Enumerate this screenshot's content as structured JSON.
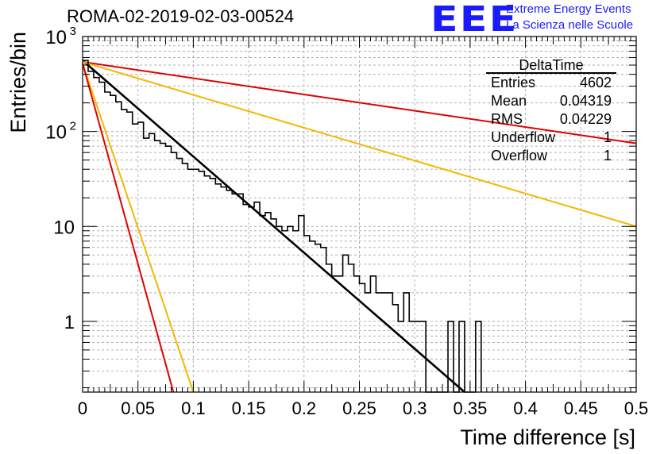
{
  "header": {
    "title": "ROMA-02-2019-02-03-00524",
    "logo_text": "EEE",
    "logo_line1": "Extreme Energy Events",
    "logo_line2": "La Scienza nelle Scuole"
  },
  "stats_box": {
    "title": "DeltaTime",
    "rows": [
      {
        "label": "Entries",
        "value": "4602"
      },
      {
        "label": "Mean",
        "value": "0.04319"
      },
      {
        "label": "RMS",
        "value": "0.04229"
      },
      {
        "label": "Underflow",
        "value": "1"
      },
      {
        "label": "Overflow",
        "value": "1"
      }
    ]
  },
  "colors": {
    "histogram": "#000000",
    "fit": "#000000",
    "red": "#e00000",
    "orange": "#f5b800",
    "grid": "#b0b0b0"
  },
  "chart_data": {
    "type": "line",
    "title": "ROMA-02-2019-02-03-00524",
    "xlabel": "Time difference [s]",
    "ylabel": "Entries/bin",
    "xlim": [
      0,
      0.5
    ],
    "ylim": [
      0.18,
      1000
    ],
    "yscale": "log",
    "grid": true,
    "legend": "top-right",
    "x_ticks": [
      "0",
      "0.05",
      "0.1",
      "0.15",
      "0.2",
      "0.25",
      "0.3",
      "0.35",
      "0.4",
      "0.45",
      "0.5"
    ],
    "y_ticks": [
      {
        "value": 1000,
        "label": "10",
        "exp": "3"
      },
      {
        "value": 100,
        "label": "10",
        "exp": "2"
      },
      {
        "value": 10,
        "label": "10",
        "exp": ""
      },
      {
        "value": 1,
        "label": "1",
        "exp": ""
      }
    ],
    "histogram": {
      "bin_width": 0.005,
      "x": [
        0.0,
        0.005,
        0.01,
        0.015,
        0.02,
        0.025,
        0.03,
        0.035,
        0.04,
        0.045,
        0.05,
        0.055,
        0.06,
        0.065,
        0.07,
        0.075,
        0.08,
        0.085,
        0.09,
        0.095,
        0.1,
        0.105,
        0.11,
        0.115,
        0.12,
        0.125,
        0.13,
        0.135,
        0.14,
        0.145,
        0.15,
        0.155,
        0.16,
        0.165,
        0.17,
        0.175,
        0.18,
        0.185,
        0.19,
        0.195,
        0.2,
        0.205,
        0.21,
        0.215,
        0.22,
        0.225,
        0.23,
        0.235,
        0.24,
        0.245,
        0.25,
        0.255,
        0.26,
        0.265,
        0.27,
        0.275,
        0.28,
        0.285,
        0.29,
        0.295,
        0.3,
        0.305,
        0.31,
        0.315,
        0.32,
        0.325,
        0.33,
        0.335,
        0.34,
        0.345,
        0.35,
        0.355
      ],
      "values": [
        560,
        430,
        370,
        330,
        260,
        240,
        205,
        170,
        160,
        120,
        125,
        85,
        95,
        80,
        75,
        70,
        60,
        52,
        46,
        40,
        40,
        38,
        34,
        32,
        28,
        26,
        24,
        22,
        22,
        17,
        16,
        18,
        13,
        14,
        12,
        10,
        9,
        10,
        9,
        13,
        8,
        7,
        6.5,
        6,
        4,
        3,
        3,
        5,
        4,
        3,
        2.5,
        2,
        3,
        2,
        2,
        2,
        1.5,
        1,
        2,
        1,
        1,
        1,
        0,
        0,
        0,
        0,
        1,
        0,
        1,
        0,
        0,
        1
      ]
    },
    "series": [
      {
        "name": "",
        "color": "#000000",
        "x": [
          0.0,
          0.345
        ],
        "y": [
          560,
          0.18
        ]
      },
      {
        "name": "",
        "color": "#e00000",
        "x": [
          0.0,
          0.5
        ],
        "y": [
          540,
          75
        ]
      },
      {
        "name": "",
        "color": "#f5b800",
        "x": [
          0.0,
          0.5
        ],
        "y": [
          540,
          10
        ]
      },
      {
        "name": "",
        "color": "#f5b800",
        "x": [
          0.0,
          0.1
        ],
        "y": [
          520,
          0.18
        ]
      },
      {
        "name": "",
        "color": "#e00000",
        "x": [
          0.0,
          0.082
        ],
        "y": [
          520,
          0.18
        ]
      }
    ]
  }
}
